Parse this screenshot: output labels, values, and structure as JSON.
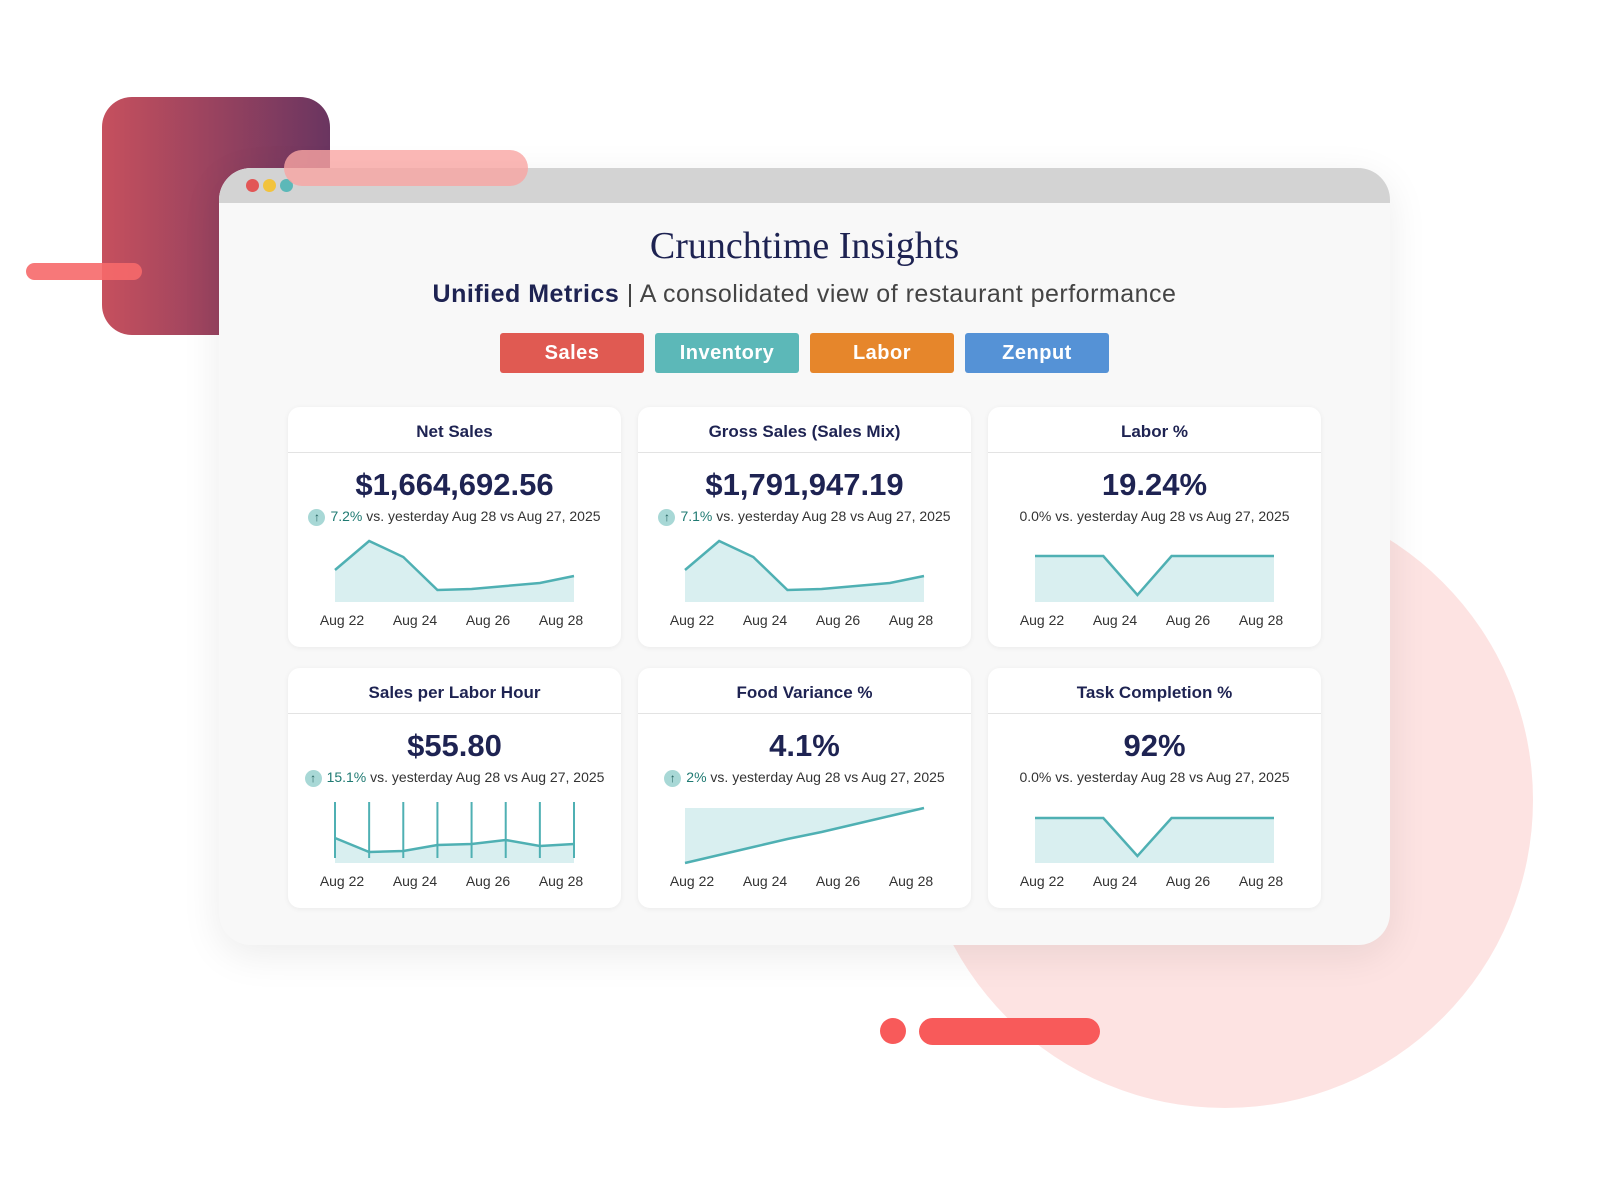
{
  "header": {
    "title": "Crunchtime Insights",
    "subtitle_strong": "Unified Metrics",
    "subtitle_rest": "| A consolidated view of restaurant performance"
  },
  "tabs": [
    {
      "label": "Sales",
      "color": "#e05a52"
    },
    {
      "label": "Inventory",
      "color": "#5cb8b8"
    },
    {
      "label": "Labor",
      "color": "#e6862b"
    },
    {
      "label": "Zenput",
      "color": "#5592d6"
    }
  ],
  "cards": [
    {
      "title": "Net Sales",
      "value": "$1,664,692.56",
      "change": "7.2%",
      "arrow": true,
      "comparison": "vs. yesterday Aug 28 vs Aug 27, 2025",
      "chart": {
        "type": "area",
        "categories": [
          "Aug 22",
          "Aug 24",
          "Aug 26",
          "Aug 28"
        ],
        "values": [
          32,
          61,
          45,
          12,
          13,
          16,
          19,
          26
        ]
      }
    },
    {
      "title": "Gross Sales (Sales Mix)",
      "value": "$1,791,947.19",
      "change": "7.1%",
      "arrow": true,
      "comparison": "vs. yesterday Aug 28 vs Aug 27, 2025",
      "chart": {
        "type": "area",
        "categories": [
          "Aug 22",
          "Aug 24",
          "Aug 26",
          "Aug 28"
        ],
        "values": [
          32,
          61,
          45,
          12,
          13,
          16,
          19,
          26
        ]
      }
    },
    {
      "title": "Labor %",
      "value": "19.24%",
      "change": "0.0%",
      "arrow": false,
      "comparison": "vs. yesterday Aug 28 vs Aug 27, 2025",
      "chart": {
        "type": "area",
        "categories": [
          "Aug 22",
          "Aug 24",
          "Aug 26",
          "Aug 28"
        ],
        "values": [
          46,
          46,
          46,
          7,
          46,
          46,
          46,
          46
        ]
      }
    },
    {
      "title": "Sales per Labor Hour",
      "value": "$55.80",
      "change": "15.1%",
      "arrow": true,
      "comparison": "vs. yesterday Aug 28 vs Aug 27, 2025",
      "chart": {
        "type": "area",
        "whiskers": true,
        "categories": [
          "Aug 22",
          "Aug 24",
          "Aug 26",
          "Aug 28"
        ],
        "values": [
          25,
          11,
          12,
          18,
          19,
          23,
          17,
          19
        ]
      }
    },
    {
      "title": "Food Variance %",
      "value": "4.1%",
      "change": "2%",
      "arrow": true,
      "comparison": "vs. yesterday Aug 28 vs Aug 27, 2025",
      "chart": {
        "type": "area",
        "fill": "above",
        "categories": [
          "Aug 22",
          "Aug 24",
          "Aug 26",
          "Aug 28"
        ],
        "values": [
          0,
          8,
          16,
          24,
          31,
          39,
          47,
          55
        ]
      }
    },
    {
      "title": "Task Completion %",
      "value": "92%",
      "change": "0.0%",
      "arrow": false,
      "comparison": "vs. yesterday Aug 28 vs Aug 27, 2025",
      "chart": {
        "type": "area",
        "categories": [
          "Aug 22",
          "Aug 24",
          "Aug 26",
          "Aug 28"
        ],
        "values": [
          45,
          45,
          45,
          7,
          45,
          45,
          45,
          45
        ]
      }
    }
  ]
}
